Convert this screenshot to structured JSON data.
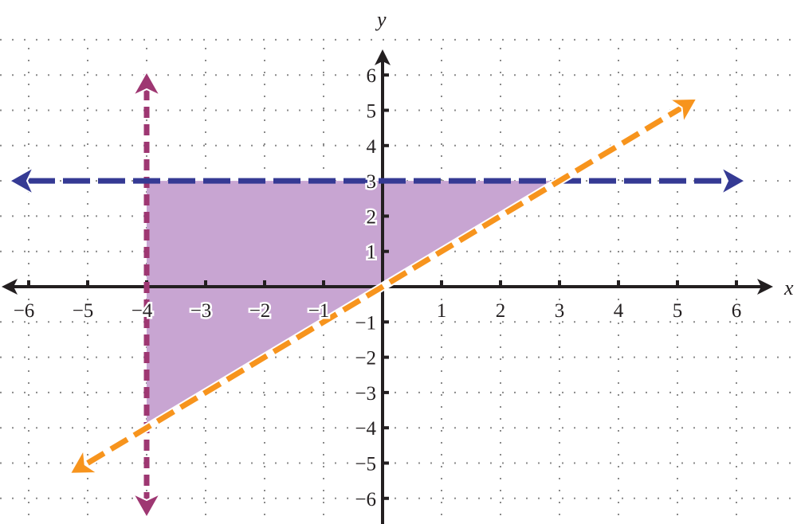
{
  "chart_data": {
    "type": "line",
    "xlabel": "x",
    "ylabel": "y",
    "xlim": [
      -6,
      6
    ],
    "ylim": [
      -6,
      6
    ],
    "x_ticks": [
      -6,
      -5,
      -4,
      -3,
      -2,
      -1,
      1,
      2,
      3,
      4,
      5,
      6
    ],
    "y_ticks": [
      6,
      5,
      4,
      3,
      2,
      1,
      -1,
      -2,
      -3,
      -4,
      -5,
      -6
    ],
    "grid": true,
    "series": [
      {
        "equation": "x = -4",
        "kind": "vertical",
        "value": -4,
        "style": "dashed",
        "color": "#9e3772"
      },
      {
        "equation": "y = 3",
        "kind": "horizontal",
        "value": 3,
        "style": "dashed",
        "color": "#353a94"
      },
      {
        "equation": "y = x",
        "kind": "slope",
        "slope": 1,
        "intercept": 0,
        "style": "dashed",
        "color": "#f7941d"
      }
    ],
    "shaded_region": {
      "vertices": [
        [
          -4,
          3
        ],
        [
          3,
          3
        ],
        [
          -4,
          -4
        ]
      ],
      "color": "#c8a5d2"
    }
  }
}
